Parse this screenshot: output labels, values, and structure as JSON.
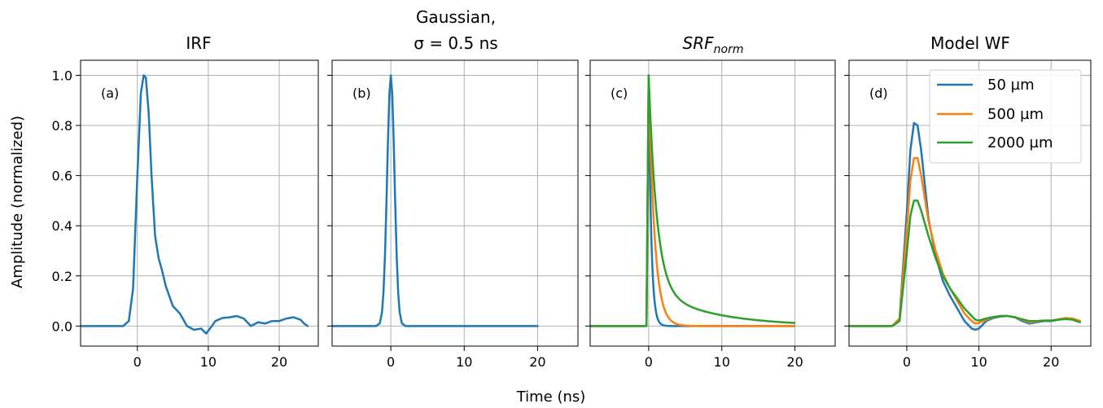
{
  "figure": {
    "xlabel": "Time (ns)",
    "ylabel": "Amplitude (normalized)"
  },
  "colors": {
    "blue": "#1f77b4",
    "orange": "#ff7f0e",
    "green": "#2ca02c",
    "grid": "#b0b0b0"
  },
  "legend_placement": "top-right of panel (d)",
  "chart_data": [
    {
      "type": "line",
      "title": "IRF",
      "panel_label": "(a)",
      "xlim": [
        -8,
        25.5
      ],
      "ylim": [
        -0.08,
        1.06
      ],
      "xticks": [
        0,
        10,
        20
      ],
      "yticks": [
        0.0,
        0.2,
        0.4,
        0.6,
        0.8,
        1.0
      ],
      "ytick_labels": [
        "0.0",
        "0.2",
        "0.4",
        "0.6",
        "0.8",
        "1.0"
      ],
      "grid": true,
      "series": [
        {
          "color": "#1f77b4",
          "x": [
            -8,
            -2,
            -1.2,
            -0.6,
            0,
            0.5,
            0.9,
            1.2,
            1.6,
            2,
            2.5,
            3,
            3.5,
            4,
            5,
            6,
            7,
            8,
            9,
            9.7,
            10.5,
            11,
            12,
            13,
            14,
            15,
            16,
            17,
            18,
            19,
            20,
            21,
            22,
            23,
            23.5,
            24
          ],
          "y": [
            0,
            0,
            0.02,
            0.15,
            0.6,
            0.93,
            1.0,
            0.99,
            0.85,
            0.6,
            0.36,
            0.27,
            0.22,
            0.16,
            0.08,
            0.05,
            0.0,
            -0.015,
            -0.01,
            -0.03,
            0.0,
            0.02,
            0.032,
            0.035,
            0.04,
            0.03,
            0.0,
            0.015,
            0.01,
            0.02,
            0.02,
            0.03,
            0.035,
            0.025,
            0.01,
            0.0
          ]
        }
      ]
    },
    {
      "type": "line",
      "title_line1": "Gaussian,",
      "title_line2": "σ = 0.5 ns",
      "panel_label": "(b)",
      "xlim": [
        -8,
        25.5
      ],
      "ylim": [
        -0.08,
        1.06
      ],
      "xticks": [
        0,
        10,
        20
      ],
      "yticks": [
        0.0,
        0.2,
        0.4,
        0.6,
        0.8,
        1.0
      ],
      "grid": true,
      "series": [
        {
          "color": "#1f77b4",
          "x": [
            -8,
            -2,
            -1.5,
            -1.2,
            -1.0,
            -0.8,
            -0.6,
            -0.4,
            -0.2,
            0,
            0.2,
            0.4,
            0.6,
            0.8,
            1.0,
            1.2,
            1.5,
            2,
            20
          ],
          "y": [
            0,
            0,
            0.011,
            0.056,
            0.135,
            0.278,
            0.487,
            0.726,
            0.923,
            1.0,
            0.923,
            0.726,
            0.487,
            0.278,
            0.135,
            0.056,
            0.011,
            0,
            0
          ]
        }
      ]
    },
    {
      "type": "line",
      "title_main": "SRF",
      "title_sub": "norm",
      "panel_label": "(c)",
      "xlim": [
        -8,
        25.5
      ],
      "ylim": [
        -0.08,
        1.06
      ],
      "xticks": [
        0,
        10,
        20
      ],
      "yticks": [
        0.0,
        0.2,
        0.4,
        0.6,
        0.8,
        1.0
      ],
      "grid": true,
      "series": [
        {
          "name": "50 µm",
          "color": "#1f77b4",
          "tau": 0.35,
          "x_start": -8,
          "x_end": 20
        },
        {
          "name": "500 µm",
          "color": "#ff7f0e",
          "tau": 0.8,
          "x_start": -8,
          "x_end": 20
        },
        {
          "name": "2000 µm",
          "color": "#2ca02c",
          "tau": 1.1,
          "tail": 0.15,
          "tail_tau": 8,
          "x_start": -8,
          "x_end": 20
        }
      ]
    },
    {
      "type": "line",
      "title": "Model WF",
      "panel_label": "(d)",
      "xlim": [
        -8,
        25.5
      ],
      "ylim": [
        -0.08,
        1.06
      ],
      "xticks": [
        0,
        10,
        20
      ],
      "yticks": [
        0.0,
        0.2,
        0.4,
        0.6,
        0.8,
        1.0
      ],
      "grid": true,
      "legend": [
        "50 µm",
        "500 µm",
        "2000 µm"
      ],
      "series": [
        {
          "name": "50 µm",
          "color": "#1f77b4",
          "x": [
            -8,
            -2,
            -1,
            0,
            0.5,
            1,
            1.5,
            2,
            3,
            4,
            5,
            6,
            7,
            8,
            9,
            9.5,
            10,
            11,
            12,
            13,
            14,
            15,
            16,
            17,
            18,
            19,
            20,
            21,
            22,
            23,
            24
          ],
          "y": [
            0,
            0,
            0.03,
            0.45,
            0.7,
            0.81,
            0.8,
            0.7,
            0.43,
            0.28,
            0.18,
            0.12,
            0.07,
            0.02,
            -0.01,
            -0.015,
            -0.01,
            0.02,
            0.032,
            0.038,
            0.04,
            0.035,
            0.02,
            0.01,
            0.015,
            0.02,
            0.02,
            0.025,
            0.03,
            0.03,
            0.02
          ]
        },
        {
          "name": "500 µm",
          "color": "#ff7f0e",
          "x": [
            -8,
            -2,
            -1,
            0,
            0.5,
            1,
            1.5,
            2,
            3,
            4,
            5,
            6,
            7,
            8,
            9,
            9.5,
            10,
            11,
            12,
            13,
            14,
            15,
            16,
            17,
            18,
            19,
            20,
            21,
            22,
            23,
            24
          ],
          "y": [
            0,
            0,
            0.03,
            0.38,
            0.58,
            0.67,
            0.67,
            0.6,
            0.42,
            0.3,
            0.21,
            0.15,
            0.1,
            0.05,
            0.02,
            0.01,
            0.012,
            0.025,
            0.035,
            0.04,
            0.04,
            0.035,
            0.025,
            0.015,
            0.018,
            0.022,
            0.022,
            0.027,
            0.032,
            0.03,
            0.02
          ]
        },
        {
          "name": "2000 µm",
          "color": "#2ca02c",
          "x": [
            -8,
            -2,
            -1,
            0,
            0.5,
            1,
            1.5,
            2,
            3,
            4,
            5,
            6,
            7,
            8,
            9,
            9.5,
            10,
            11,
            12,
            13,
            14,
            15,
            16,
            17,
            18,
            19,
            20,
            21,
            22,
            23,
            24
          ],
          "y": [
            0,
            0,
            0.02,
            0.29,
            0.44,
            0.5,
            0.5,
            0.46,
            0.36,
            0.27,
            0.2,
            0.15,
            0.11,
            0.07,
            0.04,
            0.025,
            0.022,
            0.03,
            0.036,
            0.04,
            0.04,
            0.035,
            0.027,
            0.02,
            0.02,
            0.022,
            0.022,
            0.025,
            0.028,
            0.025,
            0.015
          ]
        }
      ]
    }
  ]
}
